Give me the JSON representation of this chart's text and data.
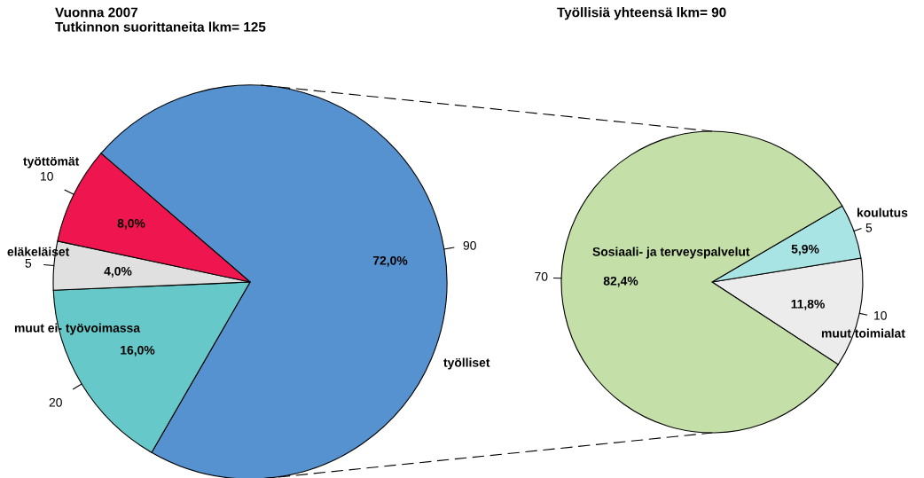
{
  "chart_data": [
    {
      "type": "pie",
      "title": "Vuonna 2007\nTutkinnon suorittaneita lkm= 125",
      "categories": [
        "työlliset",
        "muut ei- työvoimassa",
        "eläkeläiset",
        "työttömät"
      ],
      "values": [
        90,
        20,
        5,
        10
      ],
      "colors": [
        "#5592cf",
        "#66c8c8",
        "#e0e0e0",
        "#ef1650"
      ],
      "value_labels": [
        "90",
        "20",
        "5",
        "10"
      ],
      "annotations": [
        {
          "text": "72,0%",
          "x": "työlliset"
        },
        {
          "text": "16,0%",
          "x": "muut ei- työvoimassa"
        },
        {
          "text": "4,0%",
          "x": "eläkeläiset"
        },
        {
          "text": "8,0%",
          "x": "työttömät"
        }
      ]
    },
    {
      "type": "pie",
      "title": "Työllisiä yhteensä lkm= 90",
      "categories": [
        "muut toimialat",
        "koulutus",
        "Sosiaali- ja terveyspalvelut"
      ],
      "values": [
        10,
        5,
        70
      ],
      "colors": [
        "#ececec",
        "#a8e4e4",
        "#c4e0a8"
      ],
      "value_labels": [
        "10",
        "5",
        "70"
      ],
      "annotations": [
        {
          "text": "11,8%",
          "x": "muut toimialat"
        },
        {
          "text": "5,9%",
          "x": "koulutus"
        },
        {
          "text": "82,4%",
          "x": "Sosiaali- ja terveyspalvelut"
        }
      ]
    }
  ]
}
